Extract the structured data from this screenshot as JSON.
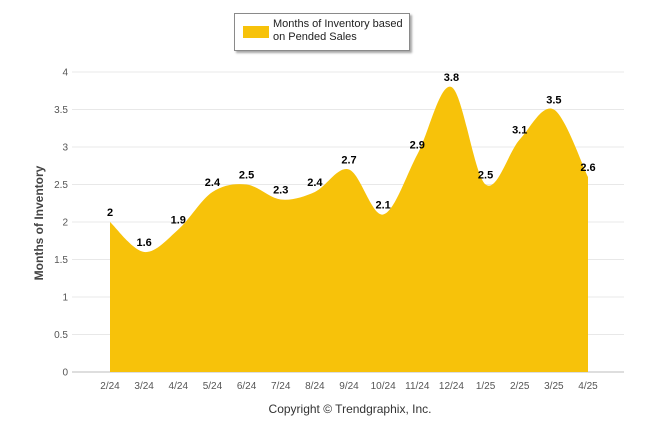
{
  "chart_data": {
    "type": "area",
    "categories": [
      "2/24",
      "3/24",
      "4/24",
      "5/24",
      "6/24",
      "7/24",
      "8/24",
      "9/24",
      "10/24",
      "11/24",
      "12/24",
      "1/25",
      "2/25",
      "3/25",
      "4/25"
    ],
    "series": [
      {
        "name": "Months of Inventory based on Pended Sales",
        "values": [
          2,
          1.6,
          1.9,
          2.4,
          2.5,
          2.3,
          2.4,
          2.7,
          2.1,
          2.9,
          3.8,
          2.5,
          3.1,
          3.5,
          2.6
        ]
      }
    ],
    "data_labels": [
      "2",
      "1.6",
      "1.9",
      "2.4",
      "2.5",
      "2.3",
      "2.4",
      "2.7",
      "2.1",
      "2.9",
      "3.8",
      "2.5",
      "3.1",
      "3.5",
      "2.6"
    ],
    "y_ticks": [
      "0",
      "0.5",
      "1",
      "1.5",
      "2",
      "2.5",
      "3",
      "3.5",
      "4"
    ],
    "ylim": [
      0,
      4
    ],
    "ylabel": "Months of Inventory",
    "xlabel": "",
    "grid": true,
    "legend_position": "top-center",
    "colors": {
      "fill": "#f7c20a",
      "grid": "#e8e8e8"
    }
  },
  "legend": {
    "label_line1": "Months of Inventory based",
    "label_line2": "on Pended Sales"
  },
  "footer": {
    "copyright": "Copyright © Trendgraphix, Inc."
  }
}
